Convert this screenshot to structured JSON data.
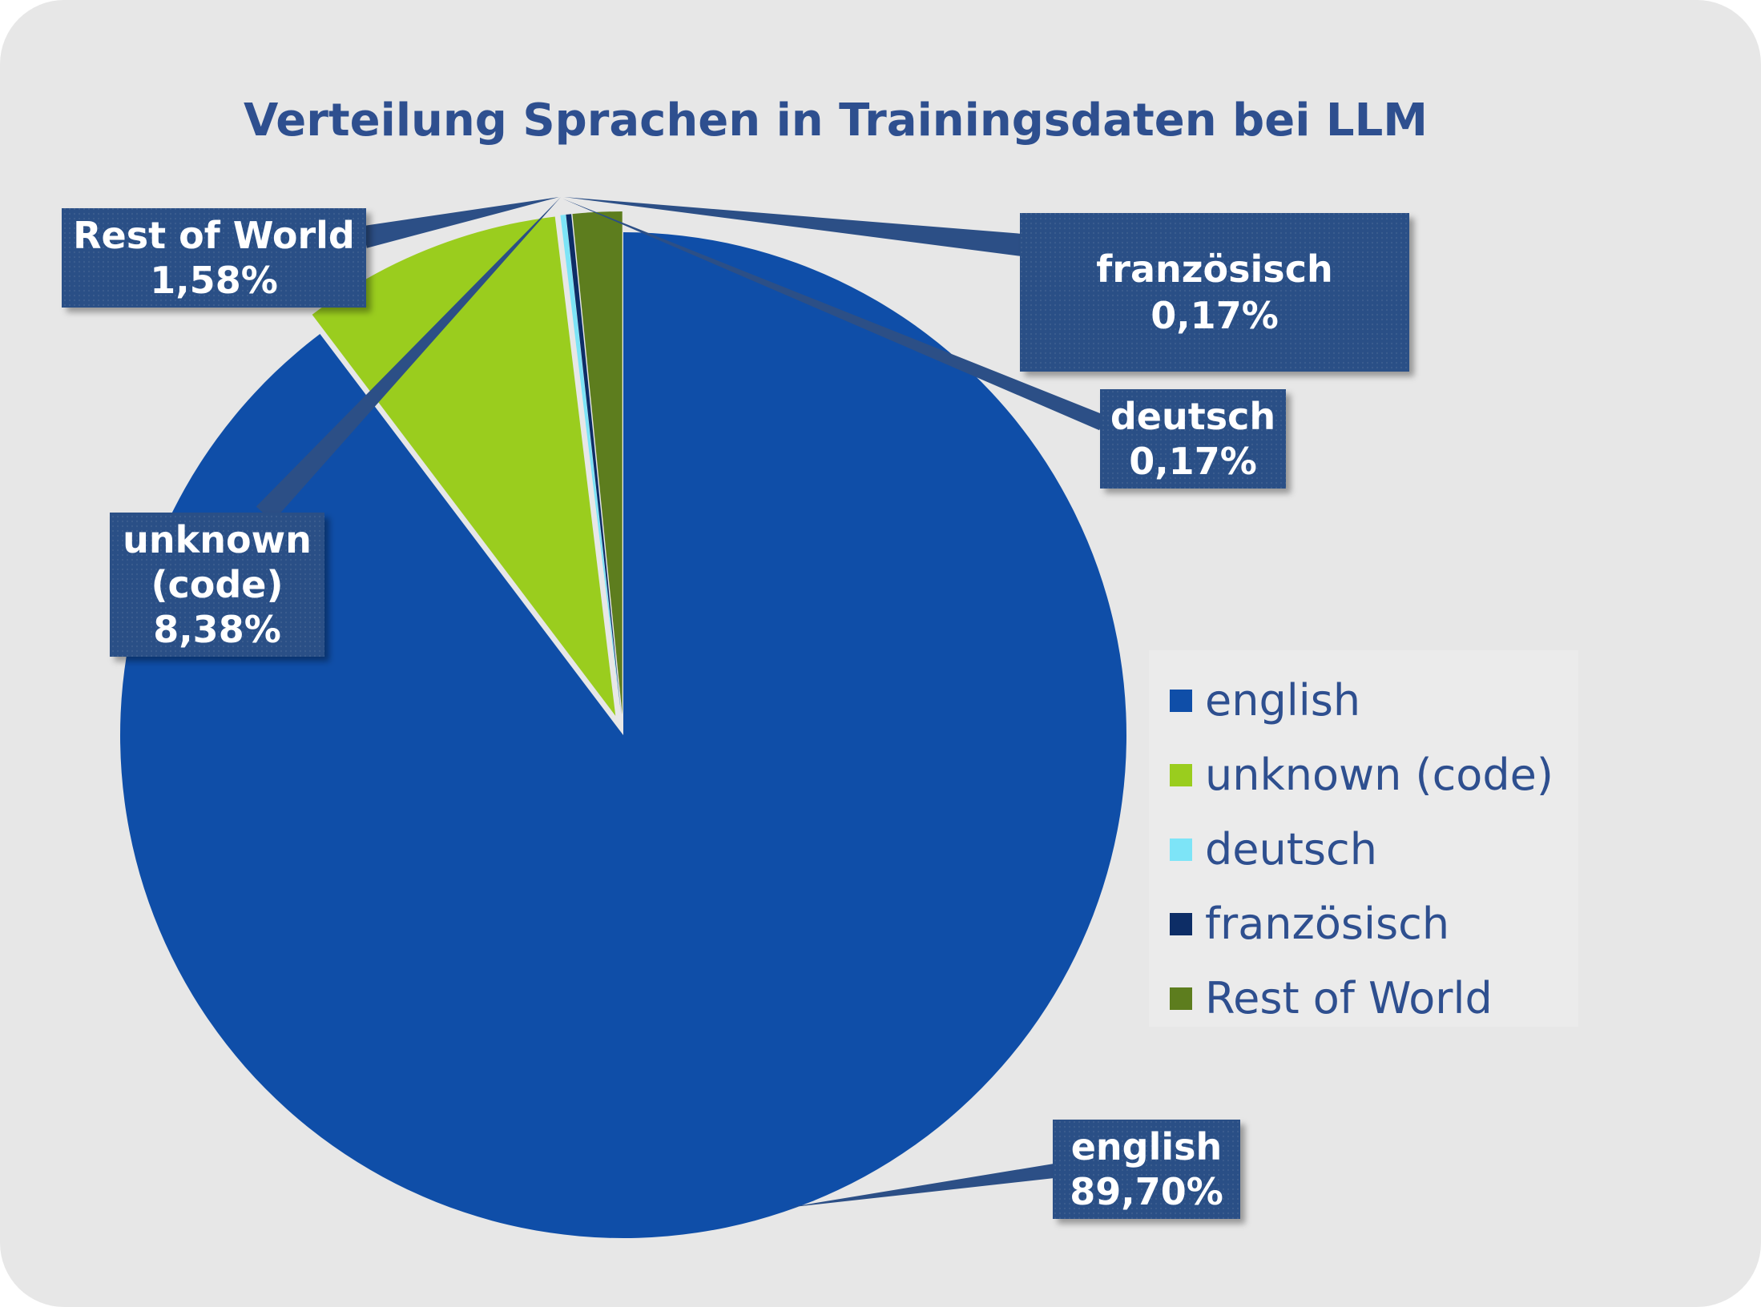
{
  "chart_data": {
    "type": "pie",
    "title": "Verteilung Sprachen in Trainingsdaten bei LLM",
    "legend_position": "right",
    "series": [
      {
        "name": "",
        "slices": [
          {
            "label": "english",
            "value": 89.7,
            "value_label": "89,70%",
            "color": "#0f4ea8"
          },
          {
            "label": "unknown (code)",
            "value": 8.38,
            "value_label": "8,38%",
            "color": "#9acd1e"
          },
          {
            "label": "deutsch",
            "value": 0.17,
            "value_label": "0,17%",
            "color": "#7de4f7"
          },
          {
            "label": "französisch",
            "value": 0.17,
            "value_label": "0,17%",
            "color": "#0d2d66"
          },
          {
            "label": "Rest of World",
            "value": 1.58,
            "value_label": "1,58%",
            "color": "#5d7d1e"
          }
        ]
      }
    ],
    "callout": {
      "fill": "#2c4f86",
      "text_color": "#ffffff",
      "lines": {
        "english": [
          "english",
          "89,70%"
        ],
        "unknown (code)": [
          "unknown",
          "(code)",
          "8,38%"
        ],
        "deutsch": [
          "deutsch",
          "0,17%"
        ],
        "französisch": [
          "französisch",
          "0,17%"
        ],
        "Rest of World": [
          "Rest of World",
          "1,58%"
        ]
      }
    },
    "background_color": "#e7e7e7",
    "title_color": "#2e4f8f",
    "legend_text_color": "#2e4f8f"
  }
}
